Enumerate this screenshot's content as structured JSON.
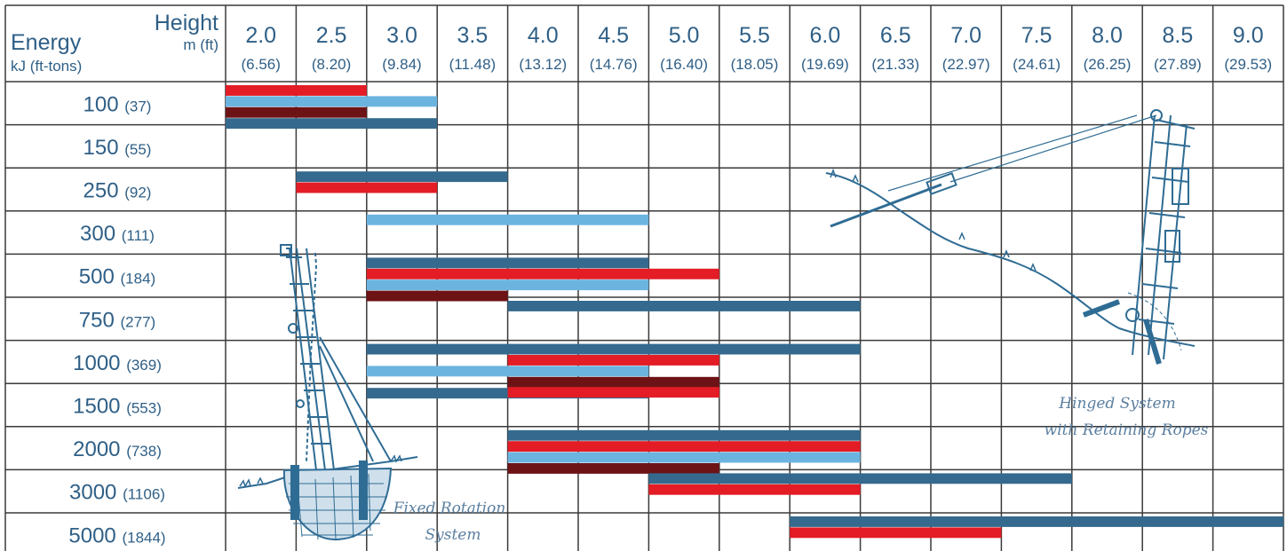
{
  "chart_data": {
    "type": "bar",
    "orientation": "horizontal-range",
    "corner": {
      "y_title": "Energy",
      "y_unit": "kJ (ft-tons)",
      "x_title": "Height",
      "x_unit": "m (ft)"
    },
    "columns": [
      {
        "m": "2.0",
        "ft": "(6.56)"
      },
      {
        "m": "2.5",
        "ft": "(8.20)"
      },
      {
        "m": "3.0",
        "ft": "(9.84)"
      },
      {
        "m": "3.5",
        "ft": "(11.48)"
      },
      {
        "m": "4.0",
        "ft": "(13.12)"
      },
      {
        "m": "4.5",
        "ft": "(14.76)"
      },
      {
        "m": "5.0",
        "ft": "(16.40)"
      },
      {
        "m": "5.5",
        "ft": "(18.05)"
      },
      {
        "m": "6.0",
        "ft": "(19.69)"
      },
      {
        "m": "6.5",
        "ft": "(21.33)"
      },
      {
        "m": "7.0",
        "ft": "(22.97)"
      },
      {
        "m": "7.5",
        "ft": "(24.61)"
      },
      {
        "m": "8.0",
        "ft": "(26.25)"
      },
      {
        "m": "8.5",
        "ft": "(27.89)"
      },
      {
        "m": "9.0",
        "ft": "(29.53)"
      }
    ],
    "rows": [
      {
        "kj": "100",
        "ft": "(37)",
        "bars": [
          {
            "color": "red",
            "from": 2.0,
            "to": 3.0
          },
          {
            "color": "light",
            "from": 2.0,
            "to": 3.5
          },
          {
            "color": "dark",
            "from": 2.0,
            "to": 3.0
          },
          {
            "color": "navy",
            "from": 2.0,
            "to": 3.5
          }
        ]
      },
      {
        "kj": "150",
        "ft": "(55)",
        "bars": []
      },
      {
        "kj": "250",
        "ft": "(92)",
        "bars": [
          {
            "color": "navy",
            "from": 2.5,
            "to": 4.0
          },
          {
            "color": "red",
            "from": 2.5,
            "to": 3.5
          }
        ]
      },
      {
        "kj": "300",
        "ft": "(111)",
        "bars": [
          {
            "color": "light",
            "from": 3.0,
            "to": 5.0
          }
        ]
      },
      {
        "kj": "500",
        "ft": "(184)",
        "bars": [
          {
            "color": "navy",
            "from": 3.0,
            "to": 5.0
          },
          {
            "color": "red",
            "from": 3.0,
            "to": 5.5
          },
          {
            "color": "light",
            "from": 3.0,
            "to": 5.0
          },
          {
            "color": "dark",
            "from": 3.0,
            "to": 4.0
          }
        ]
      },
      {
        "kj": "750",
        "ft": "(277)",
        "bars": [
          {
            "color": "navy",
            "from": 4.0,
            "to": 6.5
          }
        ]
      },
      {
        "kj": "1000",
        "ft": "(369)",
        "bars": [
          {
            "color": "navy",
            "from": 3.0,
            "to": 6.5
          },
          {
            "color": "red",
            "from": 4.0,
            "to": 5.5
          },
          {
            "color": "light",
            "from": 3.0,
            "to": 5.0
          },
          {
            "color": "dark",
            "from": 4.0,
            "to": 5.5
          },
          {
            "color": "navy",
            "from": 3.0,
            "to": 5.0
          }
        ]
      },
      {
        "kj": "1500",
        "ft": "(553)",
        "bars": [
          {
            "color": "red",
            "from": 4.0,
            "to": 5.5
          }
        ]
      },
      {
        "kj": "2000",
        "ft": "(738)",
        "bars": [
          {
            "color": "navy",
            "from": 4.0,
            "to": 6.5
          },
          {
            "color": "red",
            "from": 4.0,
            "to": 6.5
          },
          {
            "color": "light",
            "from": 4.0,
            "to": 6.5
          },
          {
            "color": "dark",
            "from": 4.0,
            "to": 5.5
          }
        ]
      },
      {
        "kj": "3000",
        "ft": "(1106)",
        "bars": [
          {
            "color": "navy",
            "from": 5.0,
            "to": 8.0
          },
          {
            "color": "red",
            "from": 5.0,
            "to": 6.5
          }
        ]
      },
      {
        "kj": "5000",
        "ft": "(1844)",
        "bars": [
          {
            "color": "navy",
            "from": 6.0,
            "to": 9.5
          },
          {
            "color": "red",
            "from": 6.0,
            "to": 7.5
          }
        ]
      }
    ],
    "series_colors": {
      "red": "#e31c25",
      "light": "#6cb4e0",
      "dark": "#6d1316",
      "navy": "#356a8e"
    },
    "annotations": {
      "left_drawing": [
        "Fixed Rotation",
        "System"
      ],
      "right_drawing": [
        "Hinged System",
        "with Retaining Ropes"
      ]
    },
    "grid": true
  },
  "colors": {
    "grid": "#3a3a3a",
    "text": "#2f5f86",
    "drawing": "#2f6c94"
  }
}
